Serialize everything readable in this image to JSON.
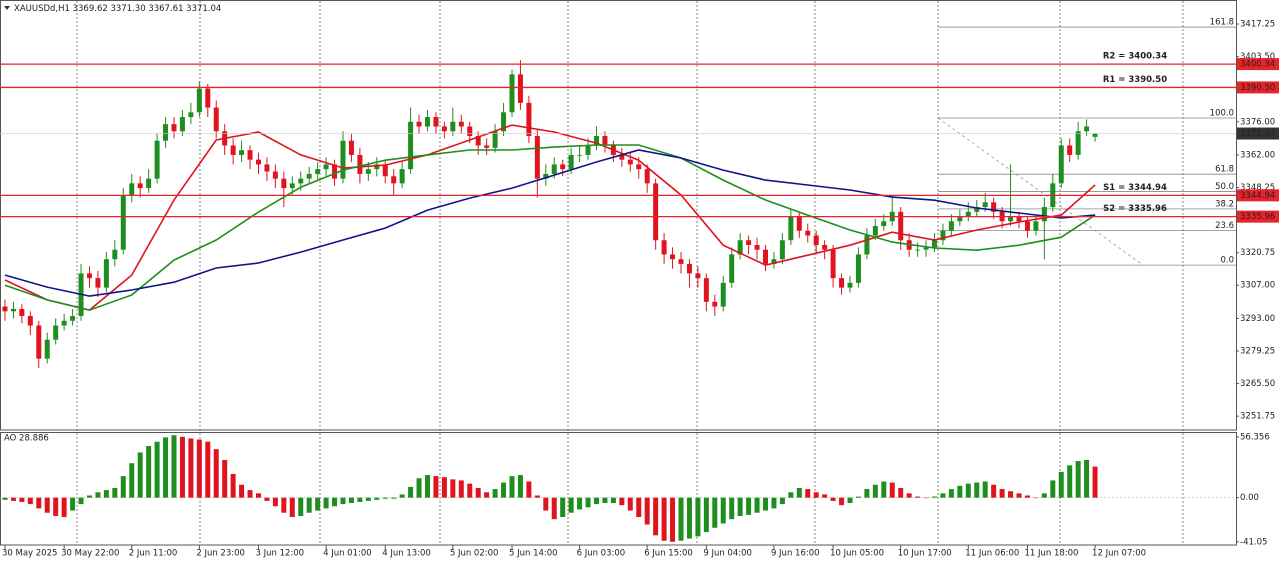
{
  "chart_data": [
    {
      "type": "candlestick",
      "title": "XAUUSDd,H1  3369.62 3371.30 3367.61 3371.04",
      "xlim": [
        -0.59,
        145.68
      ],
      "ylim": [
        3245.9,
        3427.4
      ],
      "yticks": [
        3251.75,
        {
          "value": 3265.5,
          "label": "3265.50"
        },
        3279.25,
        {
          "value": 3293,
          "label": "3293.00"
        },
        {
          "value": 3307,
          "label": "3307.00"
        },
        3320.75,
        3348.25,
        {
          "value": 3362,
          "label": "3362.00"
        },
        {
          "value": 3376,
          "label": "3376.00"
        },
        {
          "value": 3403.5,
          "label": "3403.50"
        },
        3417.25
      ],
      "xticks": [
        {
          "value": 0,
          "label": "30 May 2025"
        },
        {
          "value": 7,
          "label": "30 May 22:00"
        },
        {
          "value": 15,
          "label": "2 Jun 11:00"
        },
        {
          "value": 23,
          "label": "2 Jun 23:00"
        },
        {
          "value": 30,
          "label": "3 Jun 12:00"
        },
        {
          "value": 38,
          "label": "4 Jun 01:00"
        },
        {
          "value": 45,
          "label": "4 Jun 13:00"
        },
        {
          "value": 53,
          "label": "5 Jun 02:00"
        },
        {
          "value": 60,
          "label": "5 Jun 14:00"
        },
        {
          "value": 68,
          "label": "6 Jun 03:00"
        },
        {
          "value": 76,
          "label": "6 Jun 15:00"
        },
        {
          "value": 83,
          "label": "9 Jun 04:00"
        },
        {
          "value": 91,
          "label": "9 Jun 16:00"
        },
        {
          "value": 98,
          "label": "10 Jun 05:00"
        },
        {
          "value": 106,
          "label": "10 Jun 17:00"
        },
        {
          "value": 114,
          "label": "11 Jun 06:00"
        },
        {
          "value": 121,
          "label": "11 Jun 18:00"
        },
        {
          "value": 129,
          "label": "12 Jun 07:00"
        }
      ],
      "up_color": "#1e8f1e",
      "down_color": "#e0141e",
      "ohlc": [
        [
          3298,
          3301,
          3292,
          3296
        ],
        [
          3296,
          3300,
          3293,
          3297
        ],
        [
          3297,
          3299,
          3291,
          3294
        ],
        [
          3294,
          3296,
          3286,
          3290
        ],
        [
          3290,
          3292,
          3272,
          3276
        ],
        [
          3276,
          3287,
          3274,
          3284
        ],
        [
          3284,
          3293,
          3282,
          3290
        ],
        [
          3290,
          3295,
          3288,
          3292
        ],
        [
          3292,
          3297,
          3290,
          3294
        ],
        [
          3294,
          3316,
          3292,
          3312
        ],
        [
          3312,
          3315,
          3306,
          3310
        ],
        [
          3310,
          3313,
          3302,
          3306
        ],
        [
          3306,
          3321,
          3304,
          3318
        ],
        [
          3318,
          3326,
          3315,
          3322
        ],
        [
          3322,
          3348,
          3320,
          3345
        ],
        [
          3345,
          3354,
          3342,
          3350
        ],
        [
          3350,
          3353,
          3344,
          3348
        ],
        [
          3348,
          3356,
          3346,
          3352
        ],
        [
          3352,
          3371,
          3350,
          3368
        ],
        [
          3368,
          3378,
          3365,
          3375
        ],
        [
          3375,
          3378,
          3369,
          3372
        ],
        [
          3372,
          3381,
          3370,
          3378
        ],
        [
          3378,
          3384,
          3375,
          3380
        ],
        [
          3380,
          3393,
          3378,
          3390
        ],
        [
          3390,
          3392,
          3378,
          3382
        ],
        [
          3382,
          3385,
          3369,
          3372
        ],
        [
          3372,
          3375,
          3362,
          3366
        ],
        [
          3366,
          3369,
          3358,
          3362
        ],
        [
          3362,
          3368,
          3359,
          3364
        ],
        [
          3364,
          3366,
          3356,
          3360
        ],
        [
          3360,
          3363,
          3354,
          3358
        ],
        [
          3358,
          3361,
          3351,
          3355
        ],
        [
          3355,
          3358,
          3348,
          3352
        ],
        [
          3352,
          3355,
          3340,
          3348
        ],
        [
          3348,
          3353,
          3345,
          3350
        ],
        [
          3350,
          3355,
          3347,
          3352
        ],
        [
          3352,
          3357,
          3350,
          3354
        ],
        [
          3354,
          3359,
          3351,
          3356
        ],
        [
          3356,
          3361,
          3353,
          3358
        ],
        [
          3358,
          3360,
          3349,
          3352
        ],
        [
          3352,
          3372,
          3350,
          3368
        ],
        [
          3368,
          3371,
          3359,
          3362
        ],
        [
          3362,
          3365,
          3350,
          3354
        ],
        [
          3354,
          3359,
          3351,
          3356
        ],
        [
          3356,
          3361,
          3353,
          3358
        ],
        [
          3358,
          3360,
          3350,
          3353
        ],
        [
          3353,
          3356,
          3345,
          3350
        ],
        [
          3350,
          3359,
          3348,
          3356
        ],
        [
          3356,
          3382,
          3354,
          3376
        ],
        [
          3376,
          3379,
          3371,
          3374
        ],
        [
          3374,
          3381,
          3372,
          3378
        ],
        [
          3378,
          3380,
          3371,
          3374
        ],
        [
          3374,
          3376,
          3369,
          3372
        ],
        [
          3372,
          3382,
          3370,
          3376
        ],
        [
          3376,
          3379,
          3371,
          3374
        ],
        [
          3374,
          3376,
          3367,
          3370
        ],
        [
          3370,
          3372,
          3362,
          3366
        ],
        [
          3366,
          3369,
          3362,
          3365
        ],
        [
          3365,
          3375,
          3363,
          3372
        ],
        [
          3372,
          3384,
          3370,
          3380
        ],
        [
          3380,
          3398,
          3378,
          3396
        ],
        [
          3396,
          3402,
          3381,
          3384
        ],
        [
          3384,
          3387,
          3367,
          3370
        ],
        [
          3370,
          3373,
          3344,
          3352
        ],
        [
          3352,
          3358,
          3349,
          3354
        ],
        [
          3354,
          3361,
          3352,
          3358
        ],
        [
          3358,
          3360,
          3353,
          3356
        ],
        [
          3356,
          3365,
          3354,
          3362
        ],
        [
          3362,
          3366,
          3359,
          3362
        ],
        [
          3362,
          3369,
          3360,
          3366
        ],
        [
          3366,
          3374,
          3364,
          3370
        ],
        [
          3370,
          3372,
          3363,
          3366
        ],
        [
          3366,
          3368,
          3359,
          3362
        ],
        [
          3362,
          3365,
          3357,
          3360
        ],
        [
          3360,
          3363,
          3355,
          3358
        ],
        [
          3358,
          3361,
          3352,
          3356
        ],
        [
          3356,
          3358,
          3346,
          3350
        ],
        [
          3350,
          3352,
          3322,
          3326
        ],
        [
          3326,
          3329,
          3316,
          3320
        ],
        [
          3320,
          3323,
          3314,
          3318
        ],
        [
          3318,
          3321,
          3312,
          3316
        ],
        [
          3316,
          3318,
          3306,
          3312
        ],
        [
          3312,
          3315,
          3306,
          3310
        ],
        [
          3310,
          3312,
          3296,
          3300
        ],
        [
          3300,
          3303,
          3294,
          3298
        ],
        [
          3298,
          3311,
          3296,
          3308
        ],
        [
          3308,
          3323,
          3306,
          3320
        ],
        [
          3320,
          3329,
          3318,
          3326
        ],
        [
          3326,
          3328,
          3320,
          3324
        ],
        [
          3324,
          3327,
          3318,
          3322
        ],
        [
          3322,
          3324,
          3313,
          3316
        ],
        [
          3316,
          3321,
          3314,
          3318
        ],
        [
          3318,
          3329,
          3316,
          3326
        ],
        [
          3326,
          3339,
          3324,
          3336
        ],
        [
          3336,
          3338,
          3327,
          3330
        ],
        [
          3330,
          3333,
          3325,
          3328
        ],
        [
          3328,
          3330,
          3320,
          3324
        ],
        [
          3324,
          3326,
          3318,
          3322
        ],
        [
          3322,
          3324,
          3306,
          3310
        ],
        [
          3310,
          3312,
          3303,
          3306
        ],
        [
          3306,
          3311,
          3304,
          3308
        ],
        [
          3308,
          3323,
          3306,
          3320
        ],
        [
          3320,
          3331,
          3318,
          3328
        ],
        [
          3328,
          3335,
          3326,
          3332
        ],
        [
          3332,
          3337,
          3330,
          3334
        ],
        [
          3334,
          3345,
          3332,
          3338
        ],
        [
          3338,
          3340,
          3322,
          3326
        ],
        [
          3326,
          3329,
          3319,
          3322
        ],
        [
          3322,
          3325,
          3319,
          3322
        ],
        [
          3322,
          3326,
          3319,
          3323
        ],
        [
          3323,
          3329,
          3321,
          3326
        ],
        [
          3326,
          3333,
          3324,
          3330
        ],
        [
          3330,
          3337,
          3328,
          3334
        ],
        [
          3334,
          3339,
          3332,
          3336
        ],
        [
          3336,
          3342,
          3334,
          3338
        ],
        [
          3338,
          3343,
          3336,
          3340
        ],
        [
          3340,
          3346,
          3338,
          3342
        ],
        [
          3342,
          3344,
          3335,
          3338
        ],
        [
          3338,
          3340,
          3331,
          3334
        ],
        [
          3334,
          3358,
          3332,
          3336
        ],
        [
          3336,
          3338,
          3331,
          3334
        ],
        [
          3334,
          3336,
          3327,
          3330
        ],
        [
          3330,
          3337,
          3328,
          3334
        ],
        [
          3334,
          3344,
          3318,
          3340
        ],
        [
          3340,
          3354,
          3338,
          3350
        ],
        [
          3350,
          3369,
          3348,
          3366
        ],
        [
          3366,
          3369,
          3359,
          3362
        ],
        [
          3362,
          3376,
          3360,
          3372
        ],
        [
          3372,
          3377,
          3370,
          3374
        ],
        [
          3369.62,
          3371.3,
          3367.61,
          3371.04
        ]
      ],
      "series": [
        {
          "color": "#e0141e",
          "x": [
            0,
            5,
            10,
            15,
            20,
            25,
            30,
            35,
            40,
            45,
            50,
            55,
            60,
            65,
            70,
            75,
            80,
            85,
            90,
            95,
            100,
            105,
            110,
            115,
            120,
            125,
            129
          ],
          "values": [
            3309.2,
            3300.8,
            3296.5,
            3311.3,
            3343,
            3368.3,
            3371.7,
            3362,
            3356.5,
            3357.7,
            3362,
            3368.3,
            3374.6,
            3371.7,
            3367,
            3359.8,
            3345.1,
            3323.9,
            3315.5,
            3319.7,
            3323.9,
            3329.4,
            3326.1,
            3330.3,
            3333.7,
            3336.6,
            3349.3
          ]
        },
        {
          "color": "#1e8f1e",
          "x": [
            0,
            5,
            10,
            15,
            20,
            25,
            30,
            35,
            40,
            45,
            50,
            55,
            60,
            65,
            70,
            75,
            80,
            85,
            90,
            95,
            100,
            105,
            110,
            115,
            120,
            125,
            129
          ],
          "values": [
            3307,
            3300.8,
            3296.5,
            3302.9,
            3317.6,
            3326.1,
            3337.9,
            3348.4,
            3355.6,
            3359.8,
            3362,
            3364.1,
            3364.1,
            3365.3,
            3366.2,
            3366.2,
            3360.7,
            3351.4,
            3343,
            3336.6,
            3330.3,
            3325.2,
            3322.7,
            3321.8,
            3323.9,
            3327.3,
            3336.6
          ]
        },
        {
          "color": "#10148c",
          "x": [
            0,
            5,
            10,
            15,
            20,
            25,
            30,
            35,
            40,
            45,
            50,
            55,
            60,
            65,
            70,
            75,
            80,
            85,
            90,
            95,
            100,
            105,
            110,
            115,
            120,
            125,
            129
          ],
          "values": [
            3311.3,
            3306.2,
            3302.4,
            3305,
            3308.3,
            3314.3,
            3316.4,
            3321,
            3326.1,
            3331.1,
            3338.7,
            3343.8,
            3348,
            3353.5,
            3359,
            3364.1,
            3360.7,
            3355.6,
            3351.4,
            3349.3,
            3347.2,
            3344.2,
            3342.9,
            3339.6,
            3337.5,
            3335.4,
            3336.6
          ]
        }
      ],
      "hlines_color": "#e8232a",
      "hlines": [
        {
          "text": "R2 = 3400.34",
          "value": 3400.34,
          "label": "3400.34"
        },
        {
          "text": "R1 = 3390.50",
          "value": 3390.5,
          "label": "3390.50"
        },
        {
          "text": "S1 = 3344.94",
          "value": 3344.94,
          "label": "3344.94"
        },
        {
          "text": "S2 = 3335.96",
          "value": 3335.96,
          "label": "3335.96"
        }
      ],
      "fibo": {
        "x": [
          110.4,
          134.7
        ],
        "high": 3377.6,
        "low": 3315.5,
        "levels": [
          161.8,
          {
            "value": 100,
            "label": "100.0"
          },
          61.8,
          {
            "value": 50,
            "label": "50.0"
          },
          38.2,
          23.6,
          {
            "value": 0,
            "label": "0.0"
          }
        ]
      }
    },
    {
      "type": "oscillator",
      "title": "AO 28.886",
      "ylim": [
        -44,
        61
      ],
      "yticks": [
        56.356,
        {
          "value": 0,
          "label": "0.00"
        },
        -41.05
      ],
      "up_color": "#1e8f1e",
      "down_color": "#e0141e",
      "values": [
        -2,
        -3,
        -4,
        -6,
        -10,
        -14,
        -17,
        -18,
        -12,
        -6,
        2,
        5,
        7,
        9,
        20,
        32,
        42,
        48,
        52,
        56,
        58,
        56.5,
        55,
        54,
        52,
        45,
        35,
        22,
        12,
        7,
        4,
        -3,
        -8,
        -14,
        -18,
        -17,
        -14,
        -12,
        -10,
        -8,
        -6,
        -5,
        -4,
        -3,
        -2,
        -1,
        -1,
        3,
        10,
        18,
        21,
        20,
        19,
        17,
        16,
        13,
        9,
        5,
        8,
        14,
        20,
        21,
        15,
        2,
        -12,
        -20,
        -18,
        -14,
        -11,
        -9,
        -6,
        -5,
        -5,
        -7,
        -12,
        -18,
        -25,
        -35,
        -40,
        -41,
        -40,
        -38,
        -36,
        -32,
        -28,
        -24,
        -20,
        -17,
        -16,
        -14,
        -12,
        -10,
        -6,
        5,
        9,
        8,
        5,
        3,
        -3,
        -7,
        -5,
        1,
        8,
        12,
        15,
        14,
        9,
        4,
        1,
        0,
        1,
        4,
        8,
        11,
        13,
        14,
        15,
        12,
        8,
        6,
        4,
        2,
        0,
        4,
        16,
        24,
        30,
        34,
        35,
        28.886
      ]
    }
  ]
}
